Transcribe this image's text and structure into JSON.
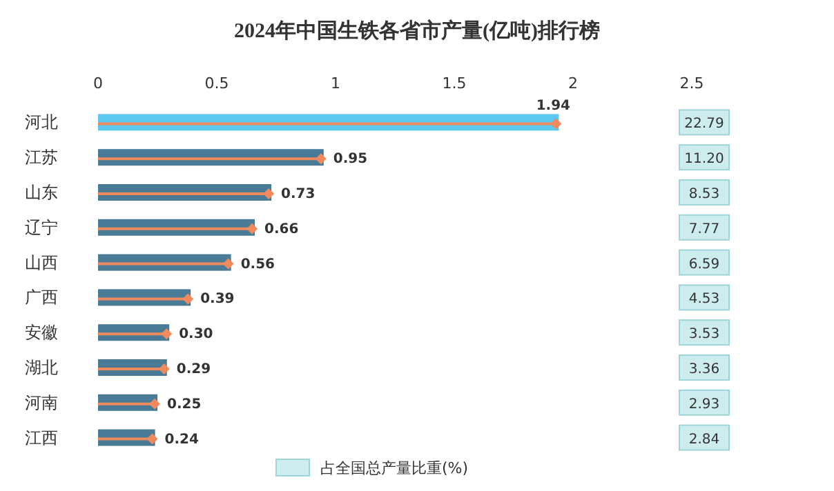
{
  "chart_data": [
    {
      "type": "bar",
      "orientation": "horizontal",
      "title": "2024年中国生铁各省市产量(亿吨)排行榜",
      "categories": [
        "河北",
        "江苏",
        "山东",
        "辽宁",
        "山西",
        "广西",
        "安徽",
        "湖北",
        "河南",
        "江西"
      ],
      "xlim": [
        0,
        2.5
      ],
      "xticks": [
        0,
        0.5,
        1,
        1.5,
        2,
        2.5
      ],
      "series": [
        {
          "values": [
            1.94,
            0.95,
            0.73,
            0.66,
            0.56,
            0.39,
            0.3,
            0.29,
            0.25,
            0.24
          ],
          "colors": [
            "#5bc8f0",
            "#4a7b96",
            "#4a7b96",
            "#4a7b96",
            "#4a7b96",
            "#4a7b96",
            "#4a7b96",
            "#4a7b96",
            "#4a7b96",
            "#4a7b96"
          ],
          "value_labels": [
            "1.94",
            "0.95",
            "0.73",
            "0.66",
            "0.56",
            "0.39",
            "0.30",
            "0.29",
            "0.25",
            "0.24"
          ]
        }
      ]
    },
    {
      "type": "other",
      "legend": "bottom",
      "categories": [
        null,
        null,
        null,
        null,
        null,
        null,
        null,
        null,
        null,
        null
      ],
      "series": [
        {
          "name": "占全国总产量比重(%)",
          "color": "#cdeced",
          "values": [
            22.79,
            11.2,
            8.53,
            7.77,
            6.59,
            4.53,
            3.53,
            3.36,
            2.93,
            2.84
          ],
          "value_labels": [
            "22.79",
            "11.20",
            "8.53",
            "7.77",
            "6.59",
            "4.53",
            "3.53",
            "3.36",
            "2.93",
            "2.84"
          ]
        }
      ]
    }
  ]
}
